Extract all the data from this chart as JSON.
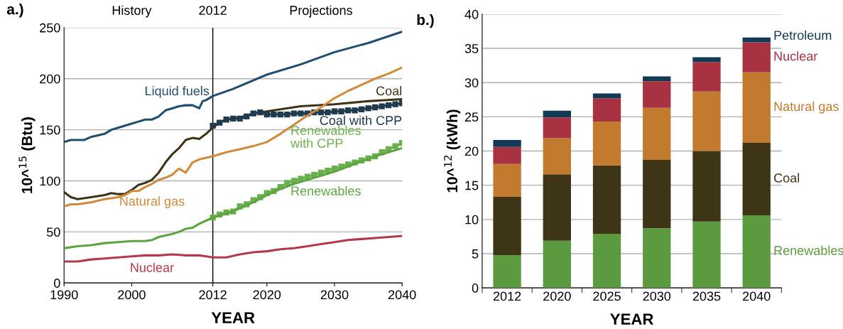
{
  "chart_data": [
    {
      "type": "line",
      "xlabel": "YEAR",
      "ylabel": "10^$^{15}$ (Btu)",
      "xlim": [
        1990,
        2040
      ],
      "xticks": [
        1990,
        2000,
        2012,
        2020,
        2030,
        2040
      ],
      "ylim": [
        0,
        250
      ],
      "yticks": [
        0,
        50,
        100,
        150,
        200,
        250
      ],
      "grid": "y",
      "legend": false,
      "annotations": [
        "a.)",
        "History",
        "Projections"
      ],
      "ref_lines": [
        {
          "axis": "x",
          "value": 2012,
          "label": "2012",
          "color": "#000000"
        }
      ],
      "series": [
        {
          "name": "Liquid fuels",
          "color": "#1f4e6e",
          "marker": "none",
          "x": [
            1990,
            1991,
            1993,
            1994,
            1996,
            1997,
            1998,
            2000,
            2001,
            2002,
            2003,
            2004,
            2005,
            2006,
            2007,
            2008,
            2009,
            2010,
            2010.5,
            2011,
            2012,
            2015,
            2020,
            2025,
            2030,
            2035,
            2040
          ],
          "values": [
            138,
            140,
            140,
            143,
            146,
            150,
            152,
            156,
            158,
            160,
            160,
            163,
            169,
            171,
            173,
            174,
            174,
            171,
            178,
            179,
            183,
            190,
            204,
            214,
            226,
            235,
            246
          ]
        },
        {
          "name": "Coal",
          "color": "#3d3415",
          "marker": "none",
          "x": [
            1990,
            1991,
            1992,
            1994,
            1996,
            1997,
            1998,
            1999,
            2000,
            2001,
            2002,
            2003,
            2004,
            2005,
            2006,
            2007,
            2008,
            2009,
            2010,
            2011,
            2012,
            2013,
            2014,
            2016,
            2018,
            2020,
            2025,
            2030,
            2035,
            2040
          ],
          "values": [
            89,
            84,
            82,
            84,
            86,
            88,
            87,
            87,
            91,
            96,
            98,
            101,
            108,
            118,
            126,
            132,
            140,
            142,
            141,
            146,
            152,
            157,
            160,
            162,
            166,
            168,
            173,
            175,
            178,
            180
          ]
        },
        {
          "name": "Coal with CPP",
          "color": "#1f3b4d",
          "marker": "square",
          "x": [
            2012,
            2013,
            2014,
            2015,
            2016,
            2017,
            2018,
            2019,
            2020,
            2021,
            2022,
            2023,
            2024,
            2025,
            2026,
            2027,
            2028,
            2029,
            2030,
            2031,
            2032,
            2033,
            2034,
            2035,
            2036,
            2037,
            2038,
            2039,
            2040
          ],
          "values": [
            154,
            157,
            160,
            161,
            161,
            163,
            166,
            167,
            165,
            165,
            165,
            165,
            166,
            166,
            166,
            167,
            167,
            167,
            168,
            168,
            169,
            169,
            170,
            171,
            172,
            173,
            174,
            175,
            176
          ]
        },
        {
          "name": "Natural gas",
          "color": "#d08a3c",
          "marker": "none",
          "x": [
            1990,
            1991,
            1992,
            1994,
            1996,
            1998,
            1999,
            2000,
            2001,
            2002,
            2003,
            2004,
            2005,
            2006,
            2007,
            2008,
            2009,
            2010,
            2012,
            2014,
            2016,
            2018,
            2020,
            2022,
            2024,
            2026,
            2028,
            2030,
            2032,
            2034,
            2036,
            2038,
            2040
          ],
          "values": [
            75,
            77,
            77,
            79,
            82,
            84,
            86,
            90,
            90,
            94,
            97,
            101,
            103,
            106,
            112,
            108,
            118,
            121,
            124,
            128,
            131,
            134,
            138,
            146,
            155,
            164,
            172,
            181,
            188,
            194,
            200,
            205,
            211
          ]
        },
        {
          "name": "Renewables with CPP",
          "color": "#6ab04c",
          "marker": "square",
          "x": [
            2012,
            2013,
            2014,
            2015,
            2016,
            2017,
            2018,
            2019,
            2020,
            2021,
            2022,
            2023,
            2024,
            2025,
            2026,
            2027,
            2028,
            2029,
            2030,
            2031,
            2032,
            2033,
            2034,
            2035,
            2036,
            2037,
            2038,
            2039,
            2040
          ],
          "values": [
            64,
            67,
            69,
            70,
            75,
            77,
            81,
            84,
            88,
            90,
            94,
            98,
            100,
            102,
            104,
            106,
            108,
            110,
            112,
            114,
            116,
            118,
            120,
            122,
            124,
            128,
            131,
            134,
            137
          ]
        },
        {
          "name": "Renewables",
          "color": "#5da443",
          "marker": "none",
          "x": [
            1990,
            1992,
            1994,
            1996,
            1998,
            2000,
            2002,
            2003,
            2004,
            2006,
            2007,
            2008,
            2009,
            2010,
            2011,
            2012,
            2014,
            2016,
            2018,
            2020,
            2022,
            2024,
            2026,
            2028,
            2030,
            2032,
            2034,
            2036,
            2038,
            2040
          ],
          "values": [
            34,
            36,
            37,
            39,
            40,
            41,
            41,
            42,
            45,
            48,
            50,
            53,
            54,
            58,
            61,
            64,
            68,
            73,
            79,
            86,
            92,
            97,
            101,
            105,
            109,
            114,
            119,
            124,
            128,
            132
          ]
        },
        {
          "name": "Nuclear",
          "color": "#b33a4a",
          "marker": "none",
          "x": [
            1990,
            1992,
            1994,
            1996,
            1998,
            2000,
            2002,
            2004,
            2006,
            2008,
            2010,
            2011,
            2012,
            2014,
            2016,
            2018,
            2020,
            2022,
            2024,
            2026,
            2028,
            2030,
            2032,
            2034,
            2036,
            2038,
            2040
          ],
          "values": [
            21,
            21,
            23,
            24,
            25,
            26,
            27,
            27,
            28,
            27,
            27,
            26,
            25,
            25,
            28,
            30,
            31,
            33,
            34,
            36,
            38,
            40,
            42,
            43,
            44,
            45,
            46
          ]
        }
      ]
    },
    {
      "type": "bar",
      "stacked": true,
      "xlabel": "YEAR",
      "ylabel": "10^$^{12}$ (kWh)",
      "ylim": [
        0,
        40
      ],
      "yticks": [
        0,
        5,
        10,
        15,
        20,
        25,
        30,
        35,
        40
      ],
      "grid": "y",
      "legend": false,
      "annotations": [
        "b.)"
      ],
      "categories": [
        "2012",
        "2020",
        "2025",
        "2030",
        "2035",
        "2040"
      ],
      "series": [
        {
          "name": "Renewables",
          "color": "#5c9a40",
          "values": [
            4.8,
            6.9,
            7.9,
            8.7,
            9.7,
            10.6
          ]
        },
        {
          "name": "Coal",
          "color": "#3e3416",
          "values": [
            8.5,
            9.7,
            10.0,
            10.0,
            10.3,
            10.6
          ]
        },
        {
          "name": "Natural gas",
          "color": "#c27a2e",
          "values": [
            4.8,
            5.3,
            6.4,
            7.6,
            8.7,
            10.3
          ]
        },
        {
          "name": "Nuclear",
          "color": "#a83242",
          "values": [
            2.5,
            3.0,
            3.4,
            3.9,
            4.3,
            4.4
          ]
        },
        {
          "name": "Petroleum",
          "color": "#123a55",
          "values": [
            1.0,
            1.0,
            0.7,
            0.7,
            0.7,
            0.7
          ]
        }
      ]
    }
  ]
}
